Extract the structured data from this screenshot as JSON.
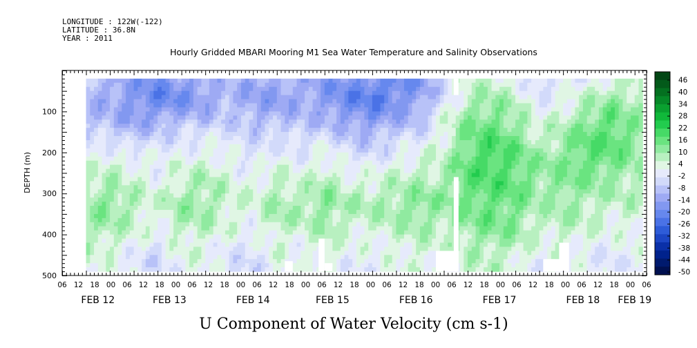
{
  "chart_data": {
    "type": "heatmap",
    "header": {
      "longitude": "LONGITUDE : 122W(-122)",
      "latitude": "LATITUDE : 36.8N",
      "year": "YEAR : 2011"
    },
    "title": "Hourly Gridded MBARI Mooring M1 Sea Water Temperature and Salinity Observations",
    "xlabel": "U Component of Water Velocity (cm s-1)",
    "ylabel": "DEPTH (m)",
    "x_range_hours": [
      0,
      147
    ],
    "x_start_label": "FEB 12 06h",
    "ylim": [
      500,
      0
    ],
    "y_ticks": [
      100,
      200,
      300,
      400,
      500
    ],
    "hour_ticks": [
      "06",
      "12",
      "18",
      "00",
      "06",
      "12",
      "18",
      "00",
      "06",
      "12",
      "18",
      "00",
      "06",
      "12",
      "18",
      "00",
      "06",
      "12",
      "18",
      "00",
      "06",
      "12",
      "18",
      "00",
      "06",
      "12",
      "18",
      "00",
      "06",
      "12",
      "18",
      "00",
      "06",
      "12",
      "18",
      "00",
      "06"
    ],
    "date_labels": [
      {
        "label": "FEB 12",
        "hour": 9
      },
      {
        "label": "FEB 13",
        "hour": 27
      },
      {
        "label": "FEB 14",
        "hour": 48
      },
      {
        "label": "FEB 15",
        "hour": 68
      },
      {
        "label": "FEB 16",
        "hour": 89
      },
      {
        "label": "FEB 17",
        "hour": 110
      },
      {
        "label": "FEB 18",
        "hour": 131
      },
      {
        "label": "FEB 19",
        "hour": 144
      }
    ],
    "data_hour_range": [
      6,
      146
    ],
    "data_depth_range": [
      20,
      490
    ],
    "colorbar": {
      "labels": [
        "46",
        "40",
        "34",
        "28",
        "22",
        "16",
        "10",
        "4",
        "-2",
        "-8",
        "-14",
        "-20",
        "-26",
        "-32",
        "-38",
        "-44",
        "-50"
      ],
      "min": -50,
      "max": 49,
      "colors": [
        "#001050",
        "#001a6e",
        "#00228c",
        "#0a30a8",
        "#1c46c4",
        "#2e5cd8",
        "#4a72e6",
        "#6688ee",
        "#8298f0",
        "#9eaaf4",
        "#b8c2f8",
        "#d2dafa",
        "#e6eafc",
        "#e0f6e4",
        "#b8f0c0",
        "#90eaa0",
        "#6ae480",
        "#46da66",
        "#22cc4e",
        "#10b83a",
        "#0aa030",
        "#068828",
        "#047020",
        "#035a1a",
        "#024614"
      ]
    },
    "no_data_gaps": [
      {
        "hour_start": 98.5,
        "hour_end": 99.7,
        "depth_start": 20,
        "depth_end": 60
      },
      {
        "hour_start": 98.5,
        "hour_end": 99.7,
        "depth_start": 260,
        "depth_end": 490
      },
      {
        "hour_start": 94.0,
        "hour_end": 99.7,
        "depth_start": 440,
        "depth_end": 490
      },
      {
        "hour_start": 56.0,
        "hour_end": 58.0,
        "depth_start": 465,
        "depth_end": 490
      },
      {
        "hour_start": 64.5,
        "hour_end": 66.0,
        "depth_start": 410,
        "depth_end": 490
      },
      {
        "hour_start": 66.0,
        "hour_end": 68.0,
        "depth_start": 470,
        "depth_end": 490
      },
      {
        "hour_start": 121.0,
        "hour_end": 127.0,
        "depth_start": 460,
        "depth_end": 490
      },
      {
        "hour_start": 125.0,
        "hour_end": 127.5,
        "depth_start": 420,
        "depth_end": 490
      }
    ],
    "velocity_grid_cm_s": {
      "depths_m": [
        20,
        70,
        120,
        170,
        220,
        270,
        320,
        370,
        420,
        470
      ],
      "hours": [
        6,
        12,
        18,
        24,
        30,
        36,
        42,
        48,
        54,
        60,
        66,
        72,
        78,
        84,
        90,
        96,
        102,
        108,
        114,
        120,
        126,
        132,
        138,
        144
      ],
      "values": [
        [
          -8,
          -10,
          -14,
          -18,
          -14,
          -12,
          -8,
          -12,
          -12,
          -10,
          -14,
          -16,
          -18,
          -20,
          -16,
          -4,
          4,
          6,
          2,
          -4,
          -2,
          0,
          4,
          6
        ],
        [
          -10,
          -12,
          -16,
          -20,
          -18,
          -14,
          -10,
          -14,
          -14,
          -12,
          -16,
          -20,
          -22,
          -18,
          -14,
          -2,
          6,
          10,
          6,
          -2,
          2,
          6,
          10,
          8
        ],
        [
          -8,
          -10,
          -14,
          -12,
          -10,
          -8,
          -6,
          -10,
          -10,
          -8,
          -10,
          -14,
          -16,
          -12,
          -8,
          2,
          12,
          14,
          10,
          2,
          6,
          12,
          16,
          10
        ],
        [
          -2,
          -4,
          -6,
          -4,
          -2,
          0,
          -2,
          -4,
          -2,
          -4,
          -2,
          -6,
          -8,
          -4,
          -2,
          4,
          14,
          18,
          14,
          6,
          10,
          16,
          18,
          12
        ],
        [
          2,
          4,
          2,
          0,
          2,
          4,
          2,
          -2,
          2,
          0,
          4,
          -2,
          -2,
          2,
          4,
          6,
          16,
          20,
          16,
          10,
          12,
          16,
          14,
          10
        ],
        [
          6,
          8,
          4,
          2,
          6,
          8,
          4,
          2,
          6,
          4,
          8,
          4,
          4,
          6,
          8,
          8,
          16,
          18,
          16,
          10,
          12,
          12,
          10,
          8
        ],
        [
          10,
          12,
          8,
          4,
          10,
          10,
          6,
          4,
          10,
          8,
          12,
          8,
          8,
          10,
          12,
          10,
          14,
          16,
          14,
          8,
          10,
          8,
          6,
          6
        ],
        [
          8,
          10,
          6,
          2,
          8,
          8,
          4,
          2,
          8,
          6,
          10,
          6,
          6,
          8,
          10,
          8,
          12,
          14,
          12,
          6,
          8,
          6,
          4,
          4
        ],
        [
          6,
          6,
          2,
          -2,
          4,
          4,
          0,
          -2,
          4,
          2,
          6,
          2,
          2,
          4,
          6,
          4,
          8,
          10,
          8,
          2,
          4,
          2,
          0,
          2
        ],
        [
          4,
          2,
          -2,
          -4,
          2,
          2,
          -2,
          -4,
          2,
          0,
          4,
          0,
          0,
          2,
          4,
          2,
          6,
          6,
          4,
          0,
          2,
          0,
          -2,
          0
        ]
      ]
    }
  }
}
